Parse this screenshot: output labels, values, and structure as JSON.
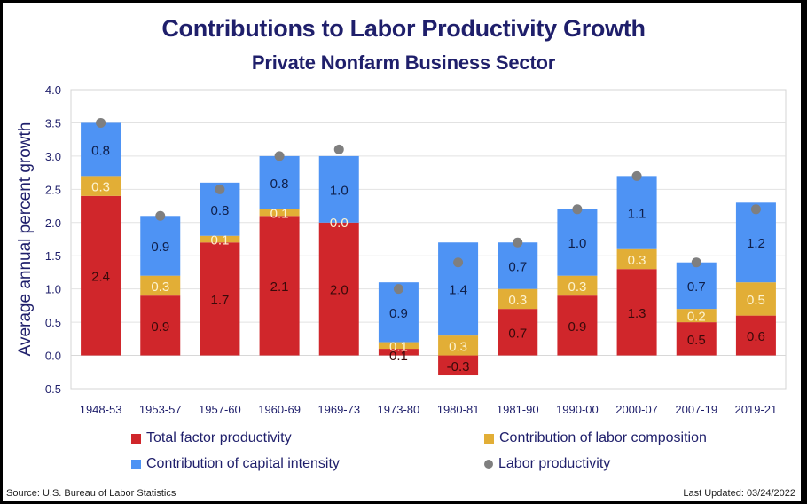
{
  "chart_data": {
    "type": "bar",
    "stacked": true,
    "title": "Contributions to Labor Productivity Growth",
    "subtitle": "Private Nonfarm Business Sector",
    "xlabel": "",
    "ylabel": "Average annual percent growth",
    "ylim": [
      -0.5,
      4.0
    ],
    "yticks": [
      "4.0",
      "3.5",
      "3.0",
      "2.5",
      "2.0",
      "1.5",
      "1.0",
      "0.5",
      "0.0",
      "-0.5"
    ],
    "ytick_values": [
      4.0,
      3.5,
      3.0,
      2.5,
      2.0,
      1.5,
      1.0,
      0.5,
      0.0,
      -0.5
    ],
    "grid": true,
    "legend_position": "bottom",
    "categories": [
      "1948-53",
      "1953-57",
      "1957-60",
      "1960-69",
      "1969-73",
      "1973-80",
      "1980-81",
      "1981-90",
      "1990-00",
      "2000-07",
      "2007-19",
      "2019-21"
    ],
    "series": [
      {
        "name": "Total factor productivity",
        "kind": "bar",
        "color": "#d0262b",
        "label_color": "#3a0a0a",
        "values": [
          2.4,
          0.9,
          1.7,
          2.1,
          2.0,
          0.1,
          -0.3,
          0.7,
          0.9,
          1.3,
          0.5,
          0.6
        ],
        "labels": [
          "2.4",
          "0.9",
          "1.7",
          "2.1",
          "2.0",
          "0.1",
          "-0.3",
          "0.7",
          "0.9",
          "1.3",
          "0.5",
          "0.6"
        ]
      },
      {
        "name": "Contribution of labor composition",
        "kind": "bar",
        "color": "#e2ae36",
        "label_color": "#fdf3d0",
        "values": [
          0.3,
          0.3,
          0.1,
          0.1,
          0.0,
          0.1,
          0.3,
          0.3,
          0.3,
          0.3,
          0.2,
          0.5
        ],
        "labels": [
          "0.3",
          "0.3",
          "0.1",
          "0.1",
          "0.0",
          "0.1",
          "0.3",
          "0.3",
          "0.3",
          "0.3",
          "0.2",
          "0.5"
        ]
      },
      {
        "name": "Contribution of capital intensity",
        "kind": "bar",
        "color": "#4e93f4",
        "label_color": "#0f1f4a",
        "values": [
          0.8,
          0.9,
          0.8,
          0.8,
          1.0,
          0.9,
          1.4,
          0.7,
          1.0,
          1.1,
          0.7,
          1.2
        ],
        "labels": [
          "0.8",
          "0.9",
          "0.8",
          "0.8",
          "1.0",
          "0.9",
          "1.4",
          "0.7",
          "1.0",
          "1.1",
          "0.7",
          "1.2"
        ]
      },
      {
        "name": "Labor productivity",
        "kind": "dot",
        "color": "#7f7f7f",
        "values": [
          3.5,
          2.1,
          2.5,
          3.0,
          3.1,
          1.0,
          1.4,
          1.7,
          2.2,
          2.7,
          1.4,
          2.2
        ]
      }
    ],
    "source": "Source: U.S. Bureau of Labor Statistics",
    "last_updated": "Last Updated: 03/24/2022"
  }
}
